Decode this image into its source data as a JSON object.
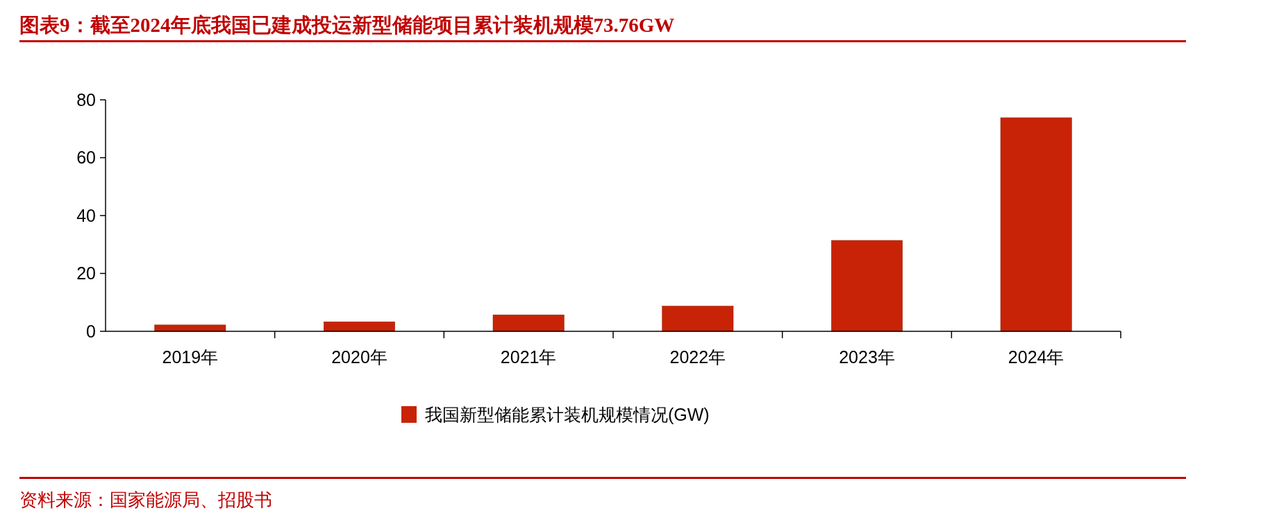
{
  "chart_data": {
    "type": "bar",
    "title": "图表9：截至2024年底我国已建成投运新型储能项目累计装机规模73.76GW",
    "categories": [
      "2019年",
      "2020年",
      "2021年",
      "2022年",
      "2023年",
      "2024年"
    ],
    "series": [
      {
        "name": "我国新型储能累计装机规模情况(GW)",
        "color": "#c82306",
        "values": [
          2.2,
          3.3,
          5.7,
          8.7,
          31.4,
          73.8
        ]
      }
    ],
    "ylim": [
      0,
      80
    ],
    "yticks": [
      0,
      20,
      40,
      60,
      80
    ],
    "grid": false,
    "legend": "bottom",
    "annotations": [
      "资料来源：国家能源局、招股书"
    ]
  }
}
